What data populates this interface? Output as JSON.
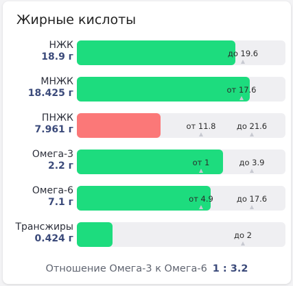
{
  "title": "Жирные кислоты",
  "rows": [
    {
      "name": "НЖК",
      "value": "18.9 г",
      "status": "ok",
      "fill": 0.76,
      "marks": [
        {
          "text": "до 19.6",
          "pos": 0.795
        }
      ]
    },
    {
      "name": "МНЖК",
      "value": "18.425 г",
      "status": "ok",
      "fill": 0.83,
      "marks": [
        {
          "text": "от 17.6",
          "pos": 0.79
        }
      ]
    },
    {
      "name": "ПНЖК",
      "value": "7.961 г",
      "status": "bad",
      "fill": 0.4,
      "marks": [
        {
          "text": "от 11.8",
          "pos": 0.595
        },
        {
          "text": "до 21.6",
          "pos": 0.84
        }
      ]
    },
    {
      "name": "Омега-3",
      "value": "2.2 г",
      "status": "ok",
      "fill": 0.7,
      "marks": [
        {
          "text": "от 1",
          "pos": 0.595
        },
        {
          "text": "до 3.9",
          "pos": 0.84
        }
      ]
    },
    {
      "name": "Омега-6",
      "value": "7.1 г",
      "status": "ok",
      "fill": 0.64,
      "marks": [
        {
          "text": "от 4.9",
          "pos": 0.595
        },
        {
          "text": "до 17.6",
          "pos": 0.84
        }
      ]
    },
    {
      "name": "Трансжиры",
      "value": "0.424 г",
      "status": "ok",
      "fill": 0.17,
      "marks": [
        {
          "text": "до 2",
          "pos": 0.795
        }
      ]
    }
  ],
  "ratio": {
    "label": "Отношение Омега-3 к Омега-6",
    "value": "1 : 3.2"
  },
  "colors": {
    "ok": "#1ddc7e",
    "bad": "#fb7878",
    "track": "#efeff2",
    "value_text": "#3b4a7a"
  }
}
